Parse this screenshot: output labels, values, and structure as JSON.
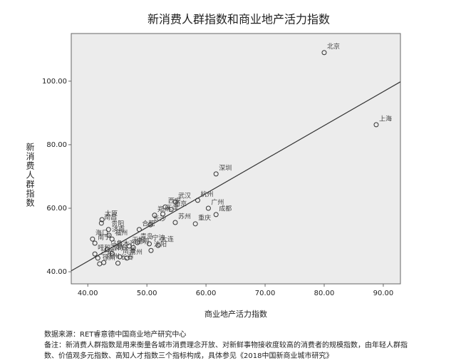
{
  "chart_data": {
    "type": "scatter",
    "title": "新消费人群指数和商业地产活力指数",
    "x_label": "商业地产活力指数",
    "y_label": "新消费人群指数",
    "xlim": [
      37.2,
      92.9
    ],
    "ylim": [
      36.2,
      115
    ],
    "xticks": [
      {
        "value": 40,
        "label": "40.00"
      },
      {
        "value": 50,
        "label": "50.00"
      },
      {
        "value": 60,
        "label": "60.00"
      },
      {
        "value": 70,
        "label": "70.00"
      },
      {
        "value": 80,
        "label": "80.00"
      },
      {
        "value": 90,
        "label": "90.00"
      }
    ],
    "yticks": [
      {
        "value": 40,
        "label": "40.00"
      },
      {
        "value": 60,
        "label": "60.00"
      },
      {
        "value": 80,
        "label": "80.00"
      },
      {
        "value": 100,
        "label": "100.00"
      }
    ],
    "labels": [
      "北京",
      "上海",
      "深圳",
      "杭州",
      "武汉",
      "广州",
      "成都",
      "重庆",
      "苏州",
      "南京",
      "西安",
      "天津",
      "郑州",
      "长沙",
      "合肥",
      "宁波",
      "大连",
      "沈阳",
      "青岛",
      "昆明",
      "无锡",
      "济南",
      "南昌",
      "贵阳",
      "太原",
      "海口",
      "福州",
      "南宁",
      "乌鲁木齐",
      "呼和浩特",
      "兰州",
      "扬州",
      "烟台",
      "南通",
      "长春",
      "常州",
      "徐州"
    ],
    "x": [
      80.0,
      88.8,
      61.7,
      58.6,
      54.8,
      60.4,
      61.7,
      58.2,
      54.8,
      54.1,
      53.1,
      52.7,
      51.3,
      50.6,
      48.7,
      50.4,
      51.9,
      50.7,
      48.4,
      47.7,
      47.0,
      43.6,
      42.3,
      43.5,
      42.4,
      40.8,
      44.1,
      41.2,
      43.3,
      41.2,
      41.7,
      42.7,
      44.1,
      45.4,
      45.1,
      46.6,
      42.0
    ],
    "y": [
      109.0,
      86.3,
      70.8,
      62.5,
      62.0,
      60.0,
      58.0,
      55.1,
      55.5,
      59.6,
      60.4,
      58.2,
      57.8,
      54.8,
      53.3,
      48.8,
      48.3,
      46.7,
      49.2,
      47.6,
      48.1,
      51.5,
      55.3,
      53.3,
      56.4,
      50.3,
      50.3,
      49.0,
      47.0,
      45.6,
      44.3,
      42.9,
      45.8,
      44.7,
      42.7,
      44.3,
      42.5
    ],
    "color": "#333333",
    "fit_line": {
      "x": [
        37.2,
        92.9
      ],
      "y": [
        40.3,
        99.8
      ]
    },
    "source": "数据来源：RET睿意德中国商业地产研究中心",
    "note": "备注：新消费人群指数是用来衡量各城市消费理念开放、对新鲜事物接收度较高的消费者的规模指数，由年轻人群指数、价值观多元指数、高知人才指数三个指标构成，具体参见《2018中国新商业城市研究》"
  }
}
